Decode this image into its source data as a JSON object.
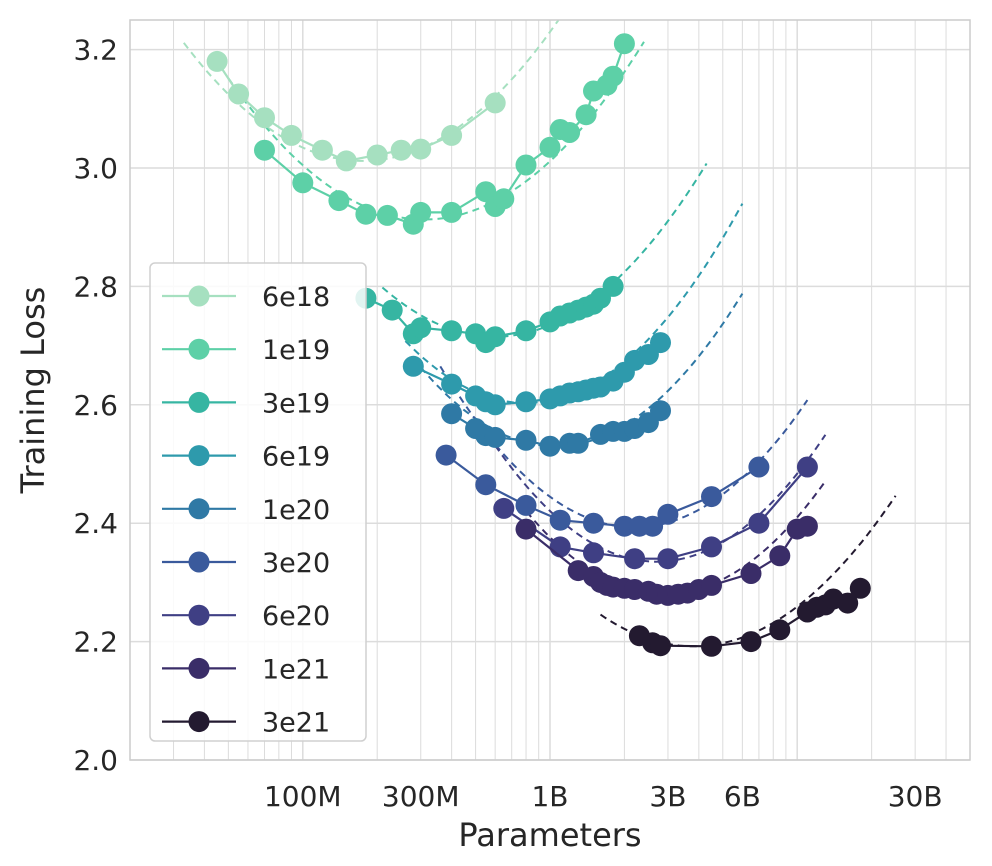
{
  "chart_data": {
    "type": "line",
    "xlabel": "Parameters",
    "ylabel": "Training Loss",
    "xscale": "log",
    "xlim": [
      20000000,
      50000000000
    ],
    "ylim": [
      2.0,
      3.25
    ],
    "grid": true,
    "legend_placement": "left",
    "x_ticks": [
      {
        "value": 100000000,
        "label": "100M"
      },
      {
        "value": 300000000,
        "label": "300M"
      },
      {
        "value": 1000000000,
        "label": "1B"
      },
      {
        "value": 3000000000,
        "label": "3B"
      },
      {
        "value": 6000000000,
        "label": "6B"
      },
      {
        "value": 30000000000,
        "label": "30B"
      }
    ],
    "y_ticks": [
      {
        "value": 2.0,
        "label": "2.0"
      },
      {
        "value": 2.2,
        "label": "2.2"
      },
      {
        "value": 2.4,
        "label": "2.4"
      },
      {
        "value": 2.6,
        "label": "2.6"
      },
      {
        "value": 2.8,
        "label": "2.8"
      },
      {
        "value": 3.0,
        "label": "3.0"
      },
      {
        "value": 3.2,
        "label": "3.2"
      }
    ],
    "series": [
      {
        "name": "6e18",
        "color": "#a6e0c0",
        "x": [
          45000000,
          55000000,
          70000000,
          90000000,
          120000000,
          150000000,
          200000000,
          250000000,
          300000000,
          400000000,
          600000000
        ],
        "y": [
          3.18,
          3.125,
          3.085,
          3.055,
          3.03,
          3.012,
          3.022,
          3.03,
          3.032,
          3.055,
          3.11
        ],
        "fit": {
          "x": [
            33000000,
            1700000000
          ],
          "min_x": 175000000,
          "min_y": 3.012,
          "curv": 0.38
        }
      },
      {
        "name": "1e19",
        "color": "#5dd0a7",
        "x": [
          70000000,
          100000000,
          140000000,
          180000000,
          220000000,
          280000000,
          300000000,
          400000000,
          550000000,
          600000000,
          650000000,
          800000000,
          1000000000,
          1100000000,
          1200000000,
          1400000000,
          1500000000,
          1700000000,
          1800000000,
          2000000000
        ],
        "y": [
          3.03,
          2.975,
          2.945,
          2.922,
          2.92,
          2.905,
          2.925,
          2.925,
          2.96,
          2.935,
          2.948,
          3.005,
          3.035,
          3.065,
          3.06,
          3.09,
          3.13,
          3.14,
          3.155,
          3.21
        ],
        "fit": {
          "x": [
            50000000,
            2400000000
          ],
          "min_x": 310000000,
          "min_y": 2.913,
          "curv": 0.38
        }
      },
      {
        "name": "3e19",
        "color": "#36b5a2",
        "x": [
          180000000,
          230000000,
          280000000,
          300000000,
          400000000,
          500000000,
          550000000,
          600000000,
          800000000,
          1000000000,
          1100000000,
          1200000000,
          1300000000,
          1400000000,
          1500000000,
          1600000000,
          1800000000
        ],
        "y": [
          2.78,
          2.76,
          2.72,
          2.73,
          2.725,
          2.72,
          2.705,
          2.715,
          2.725,
          2.74,
          2.75,
          2.755,
          2.76,
          2.765,
          2.77,
          2.78,
          2.8
        ],
        "fit": {
          "x": [
            210000000,
            4300000000
          ],
          "min_x": 600000000,
          "min_y": 2.715,
          "curv": 0.4
        }
      },
      {
        "name": "6e19",
        "color": "#2e9aac",
        "x": [
          280000000,
          400000000,
          500000000,
          550000000,
          600000000,
          800000000,
          1000000000,
          1100000000,
          1200000000,
          1300000000,
          1400000000,
          1500000000,
          1600000000,
          1800000000,
          2000000000,
          2200000000,
          2500000000,
          2800000000
        ],
        "y": [
          2.665,
          2.635,
          2.615,
          2.605,
          2.6,
          2.605,
          2.61,
          2.615,
          2.62,
          2.622,
          2.625,
          2.628,
          2.63,
          2.64,
          2.655,
          2.675,
          2.685,
          2.705
        ],
        "fit": {
          "x": [
            260000000,
            6000000000
          ],
          "min_x": 800000000,
          "min_y": 2.603,
          "curv": 0.44
        }
      },
      {
        "name": "1e20",
        "color": "#2f79a5",
        "x": [
          400000000,
          500000000,
          550000000,
          600000000,
          800000000,
          1000000000,
          1200000000,
          1300000000,
          1600000000,
          1800000000,
          2000000000,
          2200000000,
          2500000000,
          2800000000
        ],
        "y": [
          2.585,
          2.56,
          2.548,
          2.545,
          2.54,
          2.53,
          2.535,
          2.535,
          2.55,
          2.555,
          2.555,
          2.56,
          2.57,
          2.59
        ],
        "fit": {
          "x": [
            300000000,
            6000000000
          ],
          "min_x": 1050000000,
          "min_y": 2.53,
          "curv": 0.45
        }
      },
      {
        "name": "3e20",
        "color": "#3a5a9c",
        "x": [
          380000000,
          550000000,
          800000000,
          1100000000,
          1500000000,
          2000000000,
          2300000000,
          2600000000,
          3000000000,
          4500000000,
          7000000000
        ],
        "y": [
          2.515,
          2.465,
          2.43,
          2.405,
          2.4,
          2.395,
          2.395,
          2.395,
          2.415,
          2.445,
          2.495
        ],
        "fit": {
          "x": [
            360000000,
            11000000000
          ],
          "min_x": 2200000000,
          "min_y": 2.393,
          "curv": 0.44
        }
      },
      {
        "name": "6e20",
        "color": "#3f3f84",
        "x": [
          650000000,
          1100000000,
          1500000000,
          2200000000,
          3000000000,
          4500000000,
          7000000000,
          11000000000
        ],
        "y": [
          2.425,
          2.36,
          2.35,
          2.34,
          2.34,
          2.36,
          2.4,
          2.495
        ],
        "fit": {
          "x": [
            600000000,
            13000000000
          ],
          "min_x": 2700000000,
          "min_y": 2.335,
          "curv": 0.46
        }
      },
      {
        "name": "1e21",
        "color": "#3a2d68",
        "x": [
          800000000,
          1300000000,
          1500000000,
          1600000000,
          1700000000,
          1800000000,
          2000000000,
          2200000000,
          2500000000,
          2700000000,
          3000000000,
          3300000000,
          3600000000,
          4000000000,
          4500000000,
          6500000000,
          8500000000,
          10000000000,
          11000000000
        ],
        "y": [
          2.39,
          2.32,
          2.31,
          2.3,
          2.295,
          2.292,
          2.29,
          2.288,
          2.285,
          2.28,
          2.278,
          2.28,
          2.282,
          2.288,
          2.295,
          2.315,
          2.345,
          2.39,
          2.395
        ],
        "fit": {
          "x": [
            750000000,
            13000000000
          ],
          "min_x": 2900000000,
          "min_y": 2.28,
          "curv": 0.45
        }
      },
      {
        "name": "3e21",
        "color": "#231a30",
        "x": [
          2300000000,
          2600000000,
          2800000000,
          4500000000,
          6500000000,
          8500000000,
          11000000000,
          12000000000,
          13000000000,
          14000000000,
          16000000000,
          18000000000
        ],
        "y": [
          2.21,
          2.198,
          2.193,
          2.192,
          2.2,
          2.22,
          2.25,
          2.258,
          2.262,
          2.272,
          2.265,
          2.29
        ],
        "fit": {
          "x": [
            1600000000,
            25000000000
          ],
          "min_x": 3800000000,
          "min_y": 2.192,
          "curv": 0.38
        }
      }
    ]
  }
}
